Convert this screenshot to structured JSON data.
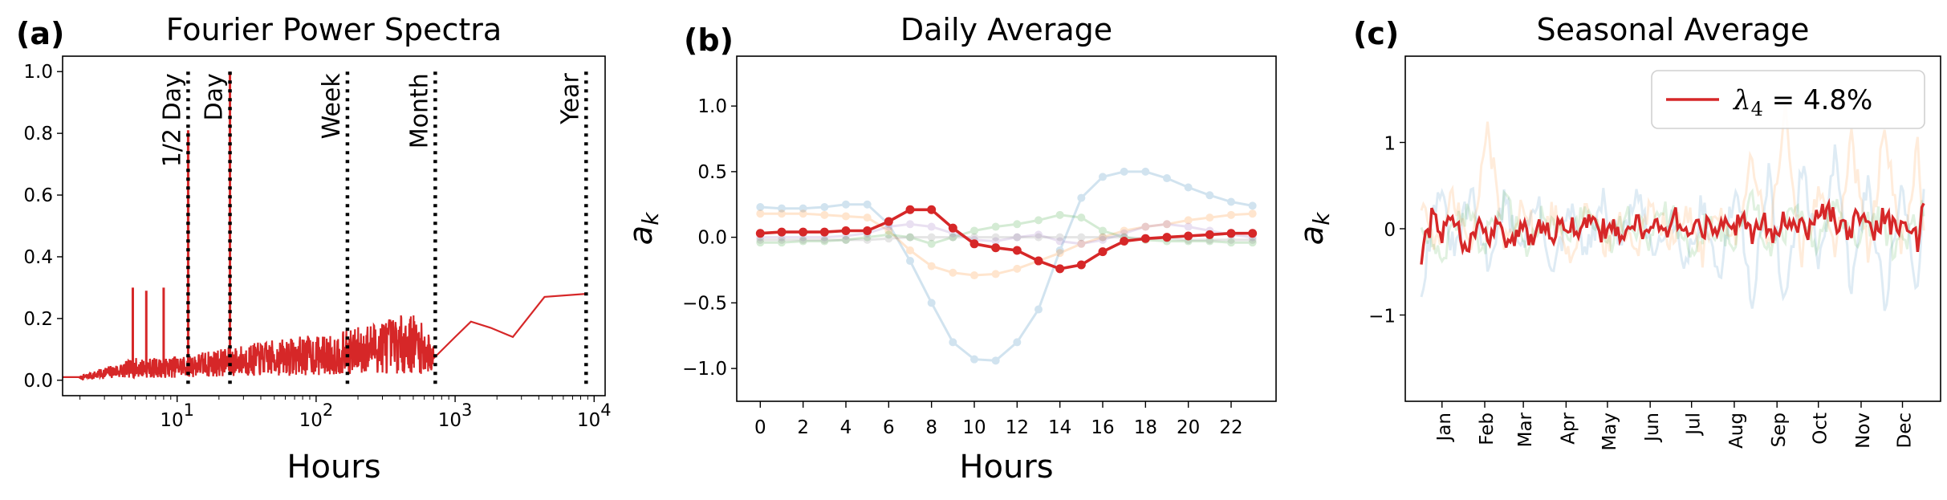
{
  "colors": {
    "main": "#d62728",
    "blue": "#1f77b4",
    "orange": "#ff7f0e",
    "green": "#2ca02c",
    "purple": "#9467bd",
    "gray": "#7f7f7f"
  },
  "chart_data": [
    {
      "panel_label": "(a)",
      "type": "line",
      "title": "Fourier Power Spectra",
      "xlabel": "Hours",
      "ylabel": "",
      "xscale": "log",
      "xlim": [
        1.5,
        12000
      ],
      "ylim": [
        -0.05,
        1.05
      ],
      "x_tick_labels": [
        {
          "base": "10",
          "exp": "1",
          "value": 10
        },
        {
          "base": "10",
          "exp": "2",
          "value": 100
        },
        {
          "base": "10",
          "exp": "3",
          "value": 1000
        },
        {
          "base": "10",
          "exp": "4",
          "value": 10000
        }
      ],
      "y_ticks": [
        0.0,
        0.2,
        0.4,
        0.6,
        0.8,
        1.0
      ],
      "y_tick_labels": [
        "0.0",
        "0.2",
        "0.4",
        "0.6",
        "0.8",
        "1.0"
      ],
      "vlines": [
        {
          "label": "1/2 Day",
          "x": 12
        },
        {
          "label": "Day",
          "x": 24
        },
        {
          "label": "Week",
          "x": 168
        },
        {
          "label": "Month",
          "x": 720
        },
        {
          "label": "Year",
          "x": 8760
        }
      ],
      "peaks": [
        {
          "x": 4.8,
          "y": 0.3
        },
        {
          "x": 6.0,
          "y": 0.29
        },
        {
          "x": 8.0,
          "y": 0.3
        },
        {
          "x": 12,
          "y": 0.81
        },
        {
          "x": 24,
          "y": 1.0
        }
      ],
      "series": [
        {
          "name": "spectrum",
          "x": [
            1.5,
            2.0,
            3.0,
            5.0,
            8.0,
            12,
            20,
            30,
            50,
            80,
            120,
            200,
            300,
            500,
            700,
            1000,
            1300,
            1800,
            2600,
            4400,
            8760
          ],
          "y": [
            0.01,
            0.01,
            0.03,
            0.05,
            0.05,
            0.06,
            0.07,
            0.08,
            0.09,
            0.1,
            0.1,
            0.12,
            0.14,
            0.15,
            0.09,
            0.14,
            0.19,
            0.17,
            0.14,
            0.27,
            0.28
          ]
        }
      ]
    },
    {
      "panel_label": "(b)",
      "type": "line",
      "title": "Daily Average",
      "xlabel": "Hours",
      "ylabel": "a_k",
      "xlim": [
        -1.1,
        24.1
      ],
      "ylim": [
        -1.25,
        1.38
      ],
      "x_ticks": [
        0,
        2,
        4,
        6,
        8,
        10,
        12,
        14,
        16,
        18,
        20,
        22
      ],
      "x_tick_labels": [
        "0",
        "2",
        "4",
        "6",
        "8",
        "10",
        "12",
        "14",
        "16",
        "18",
        "20",
        "22"
      ],
      "y_ticks": [
        -1.0,
        -0.5,
        0.0,
        0.5,
        1.0
      ],
      "y_tick_labels": [
        "−1.0",
        "−0.5",
        "0.0",
        "0.5",
        "1.0"
      ],
      "hours": [
        0,
        1,
        2,
        3,
        4,
        5,
        6,
        7,
        8,
        9,
        10,
        11,
        12,
        13,
        14,
        15,
        16,
        17,
        18,
        19,
        20,
        21,
        22,
        23
      ],
      "series": [
        {
          "name": "blue",
          "color_key": "blue",
          "highlight": false,
          "values": [
            0.23,
            0.22,
            0.22,
            0.23,
            0.25,
            0.25,
            0.1,
            -0.18,
            -0.5,
            -0.8,
            -0.93,
            -0.94,
            -0.8,
            -0.55,
            -0.1,
            0.3,
            0.46,
            0.5,
            0.5,
            0.45,
            0.38,
            0.32,
            0.27,
            0.24
          ]
        },
        {
          "name": "orange",
          "color_key": "orange",
          "highlight": false,
          "values": [
            0.18,
            0.18,
            0.18,
            0.17,
            0.16,
            0.15,
            0.05,
            -0.1,
            -0.22,
            -0.27,
            -0.29,
            -0.28,
            -0.24,
            -0.18,
            -0.12,
            -0.05,
            0.0,
            0.05,
            0.08,
            0.1,
            0.13,
            0.15,
            0.17,
            0.18
          ]
        },
        {
          "name": "green",
          "color_key": "green",
          "highlight": false,
          "values": [
            -0.04,
            -0.04,
            -0.03,
            -0.03,
            -0.02,
            0.0,
            0.02,
            0.0,
            -0.05,
            0.0,
            0.05,
            0.08,
            0.1,
            0.13,
            0.17,
            0.15,
            0.05,
            0.0,
            -0.02,
            -0.03,
            -0.03,
            -0.03,
            -0.04,
            -0.04
          ]
        },
        {
          "name": "purple",
          "color_key": "purple",
          "highlight": false,
          "values": [
            0.0,
            0.0,
            0.0,
            0.0,
            0.01,
            0.03,
            0.08,
            0.1,
            0.08,
            0.03,
            -0.02,
            -0.03,
            0.0,
            0.02,
            -0.03,
            -0.05,
            -0.02,
            0.03,
            0.08,
            0.1,
            0.08,
            0.05,
            0.02,
            0.0
          ]
        },
        {
          "name": "gray",
          "color_key": "gray",
          "highlight": false,
          "values": [
            -0.02,
            -0.02,
            -0.02,
            -0.02,
            -0.02,
            -0.02,
            -0.01,
            0.0,
            0.0,
            0.0,
            0.0,
            0.0,
            0.0,
            0.0,
            0.0,
            0.0,
            0.0,
            0.0,
            -0.01,
            -0.01,
            -0.02,
            -0.02,
            -0.02,
            -0.02
          ]
        },
        {
          "name": "mode 4",
          "color_key": "main",
          "highlight": true,
          "values": [
            0.03,
            0.04,
            0.04,
            0.04,
            0.05,
            0.05,
            0.12,
            0.21,
            0.21,
            0.07,
            -0.05,
            -0.08,
            -0.1,
            -0.18,
            -0.24,
            -0.21,
            -0.11,
            -0.03,
            -0.01,
            0.0,
            0.01,
            0.02,
            0.03,
            0.03
          ]
        }
      ]
    },
    {
      "panel_label": "(c)",
      "type": "line",
      "title": "Seasonal Average",
      "xlabel": "",
      "ylabel": "a_k",
      "xlim": [
        0,
        365
      ],
      "ylim": [
        -2.0,
        2.0
      ],
      "y_ticks": [
        -1,
        0,
        1
      ],
      "y_tick_labels": [
        "−1",
        "0",
        "1"
      ],
      "x_tick_positions_days": [
        15,
        46,
        74,
        105,
        135,
        166,
        196,
        227,
        258,
        288,
        319,
        349
      ],
      "x_tick_labels": [
        "Jan",
        "Feb",
        "Mar",
        "Apr",
        "May",
        "Jun",
        "Jul",
        "Aug",
        "Sep",
        "Oct",
        "Nov",
        "Dec"
      ],
      "legend": {
        "symbol": "λ",
        "subscript": "4",
        "text": " = 4.8%",
        "position": "top-right"
      },
      "series": [
        {
          "name": "mode 4",
          "color_key": "main",
          "highlight": true,
          "day": [
            0,
            8,
            16,
            24,
            32,
            40,
            48,
            56,
            64,
            72,
            80,
            88,
            96,
            104,
            112,
            120,
            128,
            136,
            144,
            152,
            160,
            168,
            176,
            184,
            192,
            200,
            208,
            216,
            224,
            232,
            240,
            248,
            256,
            264,
            272,
            280,
            288,
            296,
            304,
            312,
            320,
            328,
            336,
            344,
            352,
            360,
            365
          ],
          "values": [
            -0.35,
            0.15,
            -0.05,
            0.1,
            -0.25,
            0.05,
            -0.1,
            0.05,
            -0.15,
            0.0,
            -0.08,
            0.08,
            -0.05,
            0.1,
            0.0,
            0.05,
            -0.05,
            0.05,
            -0.05,
            0.1,
            0.0,
            0.05,
            0.0,
            0.12,
            -0.05,
            0.08,
            0.0,
            0.05,
            -0.05,
            0.1,
            -0.1,
            0.1,
            -0.05,
            0.15,
            0.05,
            0.0,
            0.1,
            0.25,
            -0.05,
            0.0,
            0.2,
            -0.1,
            0.15,
            0.0,
            0.05,
            -0.15,
            0.4
          ]
        },
        {
          "name": "blue",
          "color_key": "blue",
          "highlight": false,
          "day": [
            0,
            12,
            24,
            36,
            48,
            60,
            72,
            84,
            96,
            108,
            120,
            132,
            144,
            156,
            168,
            180,
            192,
            204,
            216,
            228,
            240,
            252,
            264,
            276,
            288,
            300,
            312,
            324,
            336,
            348,
            360,
            365
          ],
          "values": [
            -0.7,
            0.5,
            -0.3,
            0.4,
            -0.4,
            0.3,
            -0.2,
            0.3,
            -0.5,
            0.2,
            -0.3,
            0.3,
            -0.2,
            0.4,
            -0.3,
            0.2,
            -0.4,
            0.3,
            -0.6,
            0.5,
            -0.8,
            0.6,
            -0.9,
            0.7,
            -0.4,
            0.8,
            -0.7,
            0.6,
            -0.9,
            0.5,
            -0.8,
            0.6
          ]
        },
        {
          "name": "orange",
          "color_key": "orange",
          "highlight": false,
          "day": [
            0,
            12,
            24,
            36,
            48,
            60,
            72,
            84,
            96,
            108,
            120,
            132,
            144,
            156,
            168,
            180,
            192,
            204,
            216,
            228,
            240,
            252,
            264,
            276,
            288,
            300,
            312,
            324,
            336,
            348,
            360,
            365
          ],
          "values": [
            0.3,
            -0.2,
            0.4,
            -0.3,
            1.2,
            -0.2,
            0.3,
            -0.1,
            0.2,
            -0.3,
            0.3,
            -0.2,
            0.1,
            -0.2,
            0.3,
            -0.1,
            0.2,
            -0.3,
            0.2,
            -0.1,
            0.8,
            -0.2,
            1.3,
            -0.3,
            0.4,
            -0.2,
            1.0,
            -0.3,
            1.1,
            -0.2,
            0.9,
            -0.1
          ]
        },
        {
          "name": "green",
          "color_key": "green",
          "highlight": false,
          "day": [
            0,
            15,
            30,
            45,
            60,
            75,
            90,
            105,
            120,
            135,
            150,
            165,
            180,
            195,
            210,
            225,
            240,
            255,
            270,
            285,
            300,
            315,
            330,
            345,
            365
          ],
          "values": [
            0.1,
            -0.3,
            0.2,
            -0.2,
            0.3,
            -0.2,
            0.2,
            -0.1,
            0.2,
            -0.2,
            0.1,
            -0.1,
            0.2,
            -0.2,
            0.1,
            -0.2,
            0.3,
            -0.3,
            0.2,
            -0.2,
            0.3,
            -0.2,
            0.2,
            -0.3,
            0.2
          ]
        }
      ]
    }
  ]
}
